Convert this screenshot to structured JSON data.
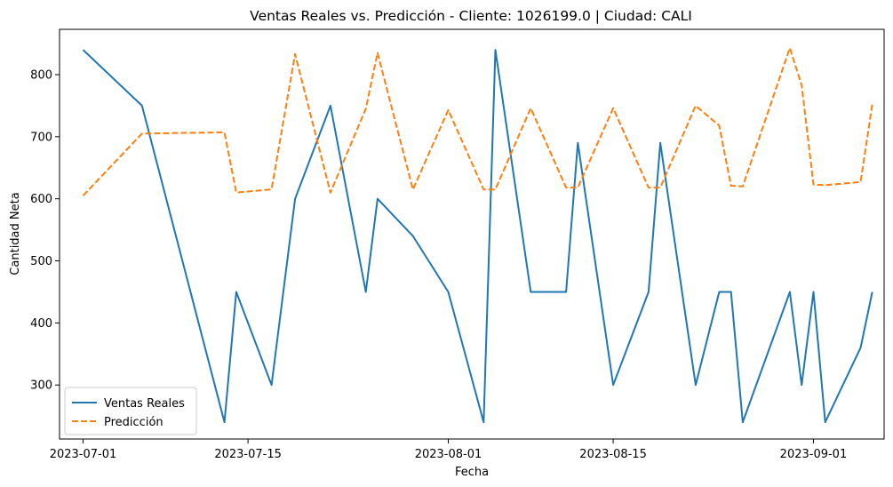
{
  "chart_data": {
    "type": "line",
    "title": "Ventas Reales vs. Predicción - Cliente: 1026199.0 | Ciudad: CALI",
    "xlabel": "Fecha",
    "ylabel": "Cantidad Neta",
    "x_ticks": [
      "2023-07-01",
      "2023-07-15",
      "2023-08-01",
      "2023-08-15",
      "2023-09-01"
    ],
    "y_ticks": [
      300,
      400,
      500,
      600,
      700,
      800
    ],
    "xlim": [
      "2023-06-29",
      "2023-09-07"
    ],
    "ylim": [
      213,
      873
    ],
    "legend_position": "lower-left",
    "grid": false,
    "series": [
      {
        "name": "Ventas Reales",
        "color": "#1f77b4",
        "style": "solid",
        "points": [
          [
            "2023-07-01",
            840
          ],
          [
            "2023-07-06",
            750
          ],
          [
            "2023-07-13",
            240
          ],
          [
            "2023-07-14",
            450
          ],
          [
            "2023-07-17",
            300
          ],
          [
            "2023-07-19",
            600
          ],
          [
            "2023-07-22",
            750
          ],
          [
            "2023-07-25",
            450
          ],
          [
            "2023-07-26",
            600
          ],
          [
            "2023-07-29",
            540
          ],
          [
            "2023-08-01",
            450
          ],
          [
            "2023-08-04",
            240
          ],
          [
            "2023-08-05",
            840
          ],
          [
            "2023-08-08",
            450
          ],
          [
            "2023-08-11",
            450
          ],
          [
            "2023-08-12",
            690
          ],
          [
            "2023-08-15",
            300
          ],
          [
            "2023-08-18",
            450
          ],
          [
            "2023-08-19",
            690
          ],
          [
            "2023-08-22",
            300
          ],
          [
            "2023-08-24",
            450
          ],
          [
            "2023-08-25",
            450
          ],
          [
            "2023-08-26",
            240
          ],
          [
            "2023-08-30",
            450
          ],
          [
            "2023-08-31",
            300
          ],
          [
            "2023-09-01",
            450
          ],
          [
            "2023-09-02",
            240
          ],
          [
            "2023-09-05",
            360
          ],
          [
            "2023-09-06",
            450
          ]
        ]
      },
      {
        "name": "Predicción",
        "color": "#ff7f0e",
        "style": "dashed",
        "points": [
          [
            "2023-07-01",
            605
          ],
          [
            "2023-07-06",
            705
          ],
          [
            "2023-07-13",
            707
          ],
          [
            "2023-07-14",
            610
          ],
          [
            "2023-07-17",
            615
          ],
          [
            "2023-07-19",
            833
          ],
          [
            "2023-07-22",
            610
          ],
          [
            "2023-07-25",
            745
          ],
          [
            "2023-07-26",
            835
          ],
          [
            "2023-07-29",
            615
          ],
          [
            "2023-08-01",
            743
          ],
          [
            "2023-08-04",
            615
          ],
          [
            "2023-08-05",
            615
          ],
          [
            "2023-08-08",
            746
          ],
          [
            "2023-08-11",
            618
          ],
          [
            "2023-08-12",
            618
          ],
          [
            "2023-08-15",
            746
          ],
          [
            "2023-08-18",
            618
          ],
          [
            "2023-08-19",
            618
          ],
          [
            "2023-08-22",
            750
          ],
          [
            "2023-08-24",
            718
          ],
          [
            "2023-08-25",
            621
          ],
          [
            "2023-08-26",
            620
          ],
          [
            "2023-08-30",
            843
          ],
          [
            "2023-08-31",
            783
          ],
          [
            "2023-09-01",
            623
          ],
          [
            "2023-09-02",
            622
          ],
          [
            "2023-09-05",
            627
          ],
          [
            "2023-09-06",
            752
          ]
        ]
      }
    ]
  }
}
